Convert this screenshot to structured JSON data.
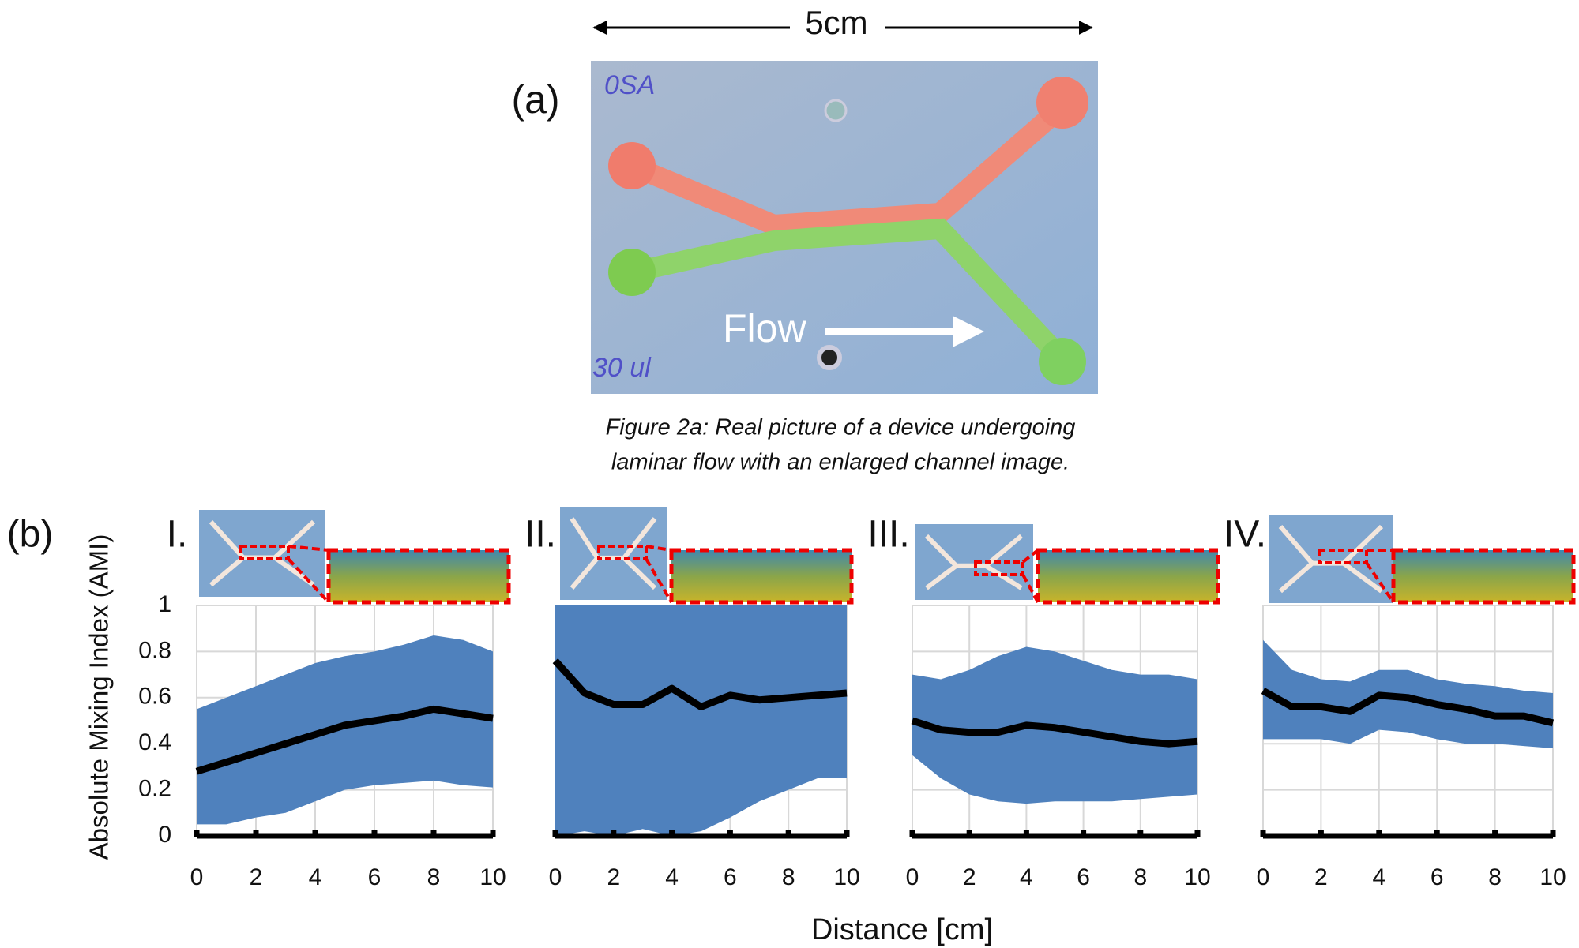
{
  "panel_a": {
    "label": "(a)",
    "scale_label": "5cm",
    "flow_label": "Flow",
    "photo_labels": [
      "0SA",
      "30 ul"
    ],
    "caption": [
      "Figure 2a: Real picture of a device undergoing",
      "laminar flow with an enlarged channel image."
    ]
  },
  "panel_b": {
    "label": "(b)",
    "ylabel": "Absolute Mixing Index (AMI)",
    "xlabel": "Distance [cm]"
  },
  "chart_data": [
    {
      "type": "line",
      "title": "I.",
      "color": "#000000",
      "band_color": "#4f81bd",
      "x": [
        0,
        1,
        2,
        3,
        4,
        5,
        6,
        7,
        8,
        9,
        10
      ],
      "values": [
        0.28,
        0.32,
        0.36,
        0.4,
        0.44,
        0.48,
        0.5,
        0.52,
        0.55,
        0.53,
        0.51
      ],
      "band_upper": [
        0.55,
        0.6,
        0.65,
        0.7,
        0.75,
        0.78,
        0.8,
        0.83,
        0.87,
        0.85,
        0.8
      ],
      "band_lower": [
        0.05,
        0.05,
        0.08,
        0.1,
        0.15,
        0.2,
        0.22,
        0.23,
        0.24,
        0.22,
        0.21
      ],
      "xlim": [
        0,
        10
      ],
      "ylim": [
        0,
        1
      ],
      "xticks": [
        0,
        2,
        4,
        6,
        8,
        10
      ],
      "yticks": [
        0,
        0.2,
        0.4,
        0.6,
        0.8,
        1
      ],
      "grid": true
    },
    {
      "type": "line",
      "title": "II.",
      "color": "#000000",
      "band_color": "#4f81bd",
      "x": [
        0,
        1,
        2,
        3,
        4,
        5,
        6,
        7,
        8,
        9,
        10
      ],
      "values": [
        0.76,
        0.62,
        0.57,
        0.57,
        0.64,
        0.56,
        0.61,
        0.59,
        0.6,
        0.61,
        0.62
      ],
      "band_upper": [
        1,
        1,
        1,
        1,
        1,
        1,
        1,
        1,
        1,
        1,
        1
      ],
      "band_lower": [
        0,
        0.02,
        0,
        0.03,
        0,
        0.02,
        0.08,
        0.15,
        0.2,
        0.25,
        0.25
      ],
      "xlim": [
        0,
        10
      ],
      "ylim": [
        0,
        1
      ],
      "xticks": [
        0,
        2,
        4,
        6,
        8,
        10
      ],
      "yticks": [
        0,
        0.2,
        0.4,
        0.6,
        0.8,
        1
      ],
      "grid": true
    },
    {
      "type": "line",
      "title": "III.",
      "color": "#000000",
      "band_color": "#4f81bd",
      "x": [
        0,
        1,
        2,
        3,
        4,
        5,
        6,
        7,
        8,
        9,
        10
      ],
      "values": [
        0.5,
        0.46,
        0.45,
        0.45,
        0.48,
        0.47,
        0.45,
        0.43,
        0.41,
        0.4,
        0.41
      ],
      "band_upper": [
        0.7,
        0.68,
        0.72,
        0.78,
        0.82,
        0.8,
        0.76,
        0.72,
        0.7,
        0.7,
        0.68
      ],
      "band_lower": [
        0.35,
        0.25,
        0.18,
        0.15,
        0.14,
        0.15,
        0.15,
        0.15,
        0.16,
        0.17,
        0.18
      ],
      "xlim": [
        0,
        10
      ],
      "ylim": [
        0,
        1
      ],
      "xticks": [
        0,
        2,
        4,
        6,
        8,
        10
      ],
      "yticks": [
        0,
        0.2,
        0.4,
        0.6,
        0.8,
        1
      ],
      "grid": true
    },
    {
      "type": "line",
      "title": "IV.",
      "color": "#000000",
      "band_color": "#4f81bd",
      "x": [
        0,
        1,
        2,
        3,
        4,
        5,
        6,
        7,
        8,
        9,
        10
      ],
      "values": [
        0.63,
        0.56,
        0.56,
        0.54,
        0.61,
        0.6,
        0.57,
        0.55,
        0.52,
        0.52,
        0.49
      ],
      "band_upper": [
        0.85,
        0.72,
        0.68,
        0.67,
        0.72,
        0.72,
        0.68,
        0.66,
        0.65,
        0.63,
        0.62
      ],
      "band_lower": [
        0.42,
        0.42,
        0.42,
        0.4,
        0.46,
        0.45,
        0.42,
        0.4,
        0.4,
        0.39,
        0.38
      ],
      "xlim": [
        0,
        10
      ],
      "ylim": [
        0,
        1
      ],
      "xticks": [
        0,
        2,
        4,
        6,
        8,
        10
      ],
      "yticks": [
        0,
        0.2,
        0.4,
        0.6,
        0.8,
        1
      ],
      "grid": true
    }
  ]
}
